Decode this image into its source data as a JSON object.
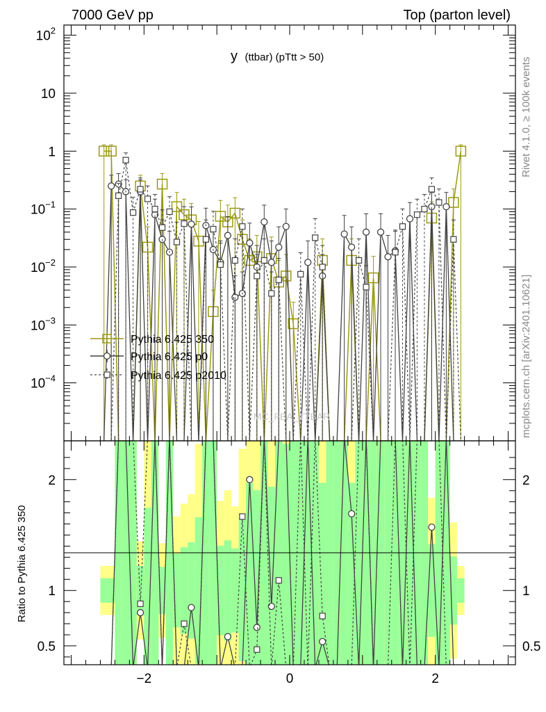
{
  "header": {
    "left": "7000 GeV pp",
    "right": "Top (parton level)"
  },
  "side_labels": {
    "rivet": "Rivet 4.1.0, ≥ 100k events",
    "mcplots": "mcplots.cern.ch [arXiv:2401.10621]"
  },
  "plot_title_main": "y",
  "plot_title_sub": "(ttbar)  (pTtt > 50)",
  "watermark": "MC_FBA_TTBAR",
  "ratio_ylabel": "Ratio to Pythia 6.425 350",
  "colors": {
    "s350": "#9a9a14",
    "p0": "#404040",
    "p2010": "#404040",
    "band_green": "#99ff99",
    "band_yellow": "#ffff88"
  },
  "chart_data": {
    "type": "line",
    "x": [
      -2.55,
      -2.45,
      -2.35,
      -2.25,
      -2.15,
      -2.05,
      -1.95,
      -1.85,
      -1.75,
      -1.65,
      -1.55,
      -1.45,
      -1.35,
      -1.25,
      -1.15,
      -1.05,
      -0.95,
      -0.85,
      -0.75,
      -0.65,
      -0.55,
      -0.45,
      -0.35,
      -0.25,
      -0.15,
      -0.05,
      0.05,
      0.15,
      0.25,
      0.35,
      0.45,
      0.55,
      0.65,
      0.75,
      0.85,
      0.95,
      1.05,
      1.15,
      1.25,
      1.35,
      1.45,
      1.55,
      1.65,
      1.75,
      1.85,
      1.95,
      2.05,
      2.15,
      2.25,
      2.35
    ],
    "xlim": [
      -3.1,
      3.1
    ],
    "xticks": [
      -2,
      0,
      2
    ],
    "main": {
      "yscale": "log",
      "ylim": [
        1e-05,
        150
      ],
      "yticks": [
        "10^-4",
        "10^-3",
        "10^-2",
        "10^-1",
        "1",
        "10",
        "10^2"
      ]
    },
    "ratio": {
      "ylim": [
        0.33,
        2.35
      ],
      "yticks": [
        "0.5",
        "1",
        "2"
      ]
    },
    "series": [
      {
        "name": "Pythia 6.425 350",
        "marker": "square-large",
        "dash": false,
        "values": [
          1.0,
          1.0,
          0,
          0,
          0,
          0.25,
          0.022,
          0,
          0.27,
          0,
          0.11,
          0.08,
          0.065,
          0.028,
          0,
          0.0017,
          0.075,
          0.06,
          0.085,
          0.03,
          0.013,
          0.015,
          0,
          0.014,
          0.0055,
          0.007,
          0.00105,
          0,
          0,
          0,
          0.013,
          0,
          0,
          0,
          0.013,
          0,
          0,
          0.0065,
          0,
          0,
          0,
          0,
          0,
          0,
          0,
          0.07,
          0,
          0,
          0.13,
          1.0
        ]
      },
      {
        "name": "Pythia 6.425 p0",
        "marker": "circle",
        "dash": false,
        "values": [
          0,
          0.25,
          0.27,
          0.2,
          0,
          0.2,
          0,
          0.08,
          0.03,
          0.018,
          0,
          0,
          0.055,
          0,
          0.052,
          0.02,
          0.012,
          0.035,
          0.003,
          0.0035,
          0.026,
          0.01,
          0.06,
          0.012,
          0.022,
          0.05,
          0,
          0,
          0.012,
          0,
          0.007,
          0,
          0,
          0.037,
          0.022,
          0,
          0.04,
          0,
          0.04,
          0.015,
          0.019,
          0,
          0.068,
          0,
          0,
          0.11,
          0,
          0.11,
          0,
          0
        ]
      },
      {
        "name": "Pythia 6.425 p2010",
        "marker": "square-small",
        "dash": true,
        "values": [
          0,
          0,
          0.17,
          0.7,
          0.087,
          0.22,
          0.15,
          0.1,
          0.048,
          0.09,
          0.027,
          0.056,
          0,
          0,
          0.03,
          0.045,
          0.011,
          0,
          0.013,
          0.05,
          0,
          0.007,
          0.013,
          0.0035,
          0.006,
          0,
          0,
          0.0075,
          0,
          0.032,
          0.01,
          0,
          0,
          0,
          0,
          0.013,
          0.0045,
          0,
          0,
          0,
          0.018,
          0.05,
          0,
          0.08,
          0.1,
          0.22,
          0.13,
          0,
          0.03,
          0
        ]
      }
    ]
  }
}
